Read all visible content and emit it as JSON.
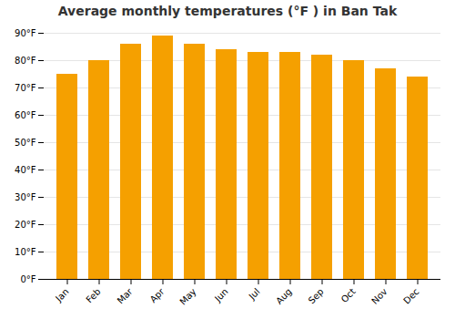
{
  "chart_data": {
    "type": "bar",
    "title": "Average monthly temperatures (°F ) in Ban Tak",
    "categories": [
      "Jan",
      "Feb",
      "Mar",
      "Apr",
      "May",
      "Jun",
      "Jul",
      "Aug",
      "Sep",
      "Oct",
      "Nov",
      "Dec"
    ],
    "values": [
      75,
      80,
      86,
      89,
      86,
      84,
      83,
      83,
      82,
      80,
      77,
      74
    ],
    "color": "#F5A000",
    "ylim": [
      0,
      90
    ],
    "yticks": [
      {
        "value": 0,
        "label": "0°F"
      },
      {
        "value": 10,
        "label": "10°F"
      },
      {
        "value": 20,
        "label": "20°F"
      },
      {
        "value": 30,
        "label": "30°F"
      },
      {
        "value": 40,
        "label": "40°F"
      },
      {
        "value": 50,
        "label": "50°F"
      },
      {
        "value": 60,
        "label": "60°F"
      },
      {
        "value": 70,
        "label": "70°F"
      },
      {
        "value": 80,
        "label": "80°F"
      },
      {
        "value": 90,
        "label": "90°F"
      }
    ],
    "grid": true
  }
}
